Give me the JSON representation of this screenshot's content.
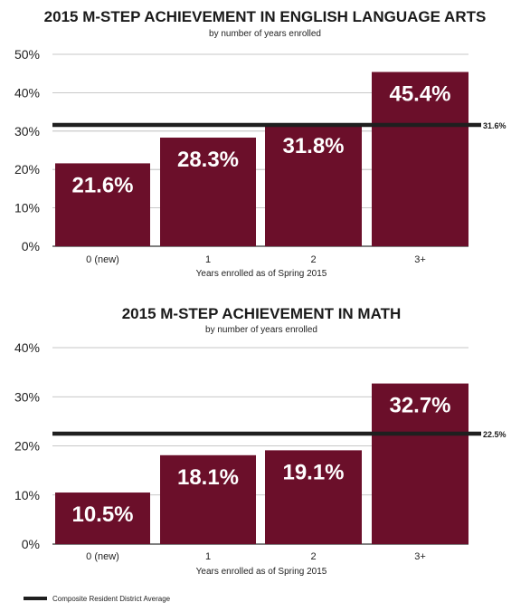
{
  "colors": {
    "bar": "#6b0f2a",
    "reference_line": "#1f1f1f",
    "grid": "#b5b5b5",
    "axis": "#333333"
  },
  "legend": {
    "label": "Composite Resident District Average",
    "placement": "bottom-left"
  },
  "chart_data": [
    {
      "type": "bar",
      "title": "2015 M-STEP ACHIEVEMENT IN ENGLISH LANGUAGE ARTS",
      "subtitle": "by number of years enrolled",
      "xlabel": "Years enrolled as of Spring 2015",
      "ylabel": "",
      "categories": [
        "0 (new)",
        "1",
        "2",
        "3+"
      ],
      "values": [
        21.6,
        28.3,
        31.8,
        45.4
      ],
      "data_labels": [
        "21.6%",
        "28.3%",
        "31.8%",
        "45.4%"
      ],
      "ylim": [
        0,
        50
      ],
      "yticks": [
        0,
        10,
        20,
        30,
        40,
        50
      ],
      "ytick_labels": [
        "0%",
        "10%",
        "20%",
        "30%",
        "40%",
        "50%"
      ],
      "grid": true,
      "reference_line": {
        "value": 31.6,
        "label": "31.6%"
      }
    },
    {
      "type": "bar",
      "title": "2015 M-STEP ACHIEVEMENT IN MATH",
      "subtitle": "by number of years enrolled",
      "xlabel": "Years enrolled as of Spring 2015",
      "ylabel": "",
      "categories": [
        "0 (new)",
        "1",
        "2",
        "3+"
      ],
      "values": [
        10.5,
        18.1,
        19.1,
        32.7
      ],
      "data_labels": [
        "10.5%",
        "18.1%",
        "19.1%",
        "32.7%"
      ],
      "ylim": [
        0,
        40
      ],
      "yticks": [
        0,
        10,
        20,
        30,
        40
      ],
      "ytick_labels": [
        "0%",
        "10%",
        "20%",
        "30%",
        "40%"
      ],
      "grid": true,
      "reference_line": {
        "value": 22.5,
        "label": "22.5%"
      }
    }
  ]
}
